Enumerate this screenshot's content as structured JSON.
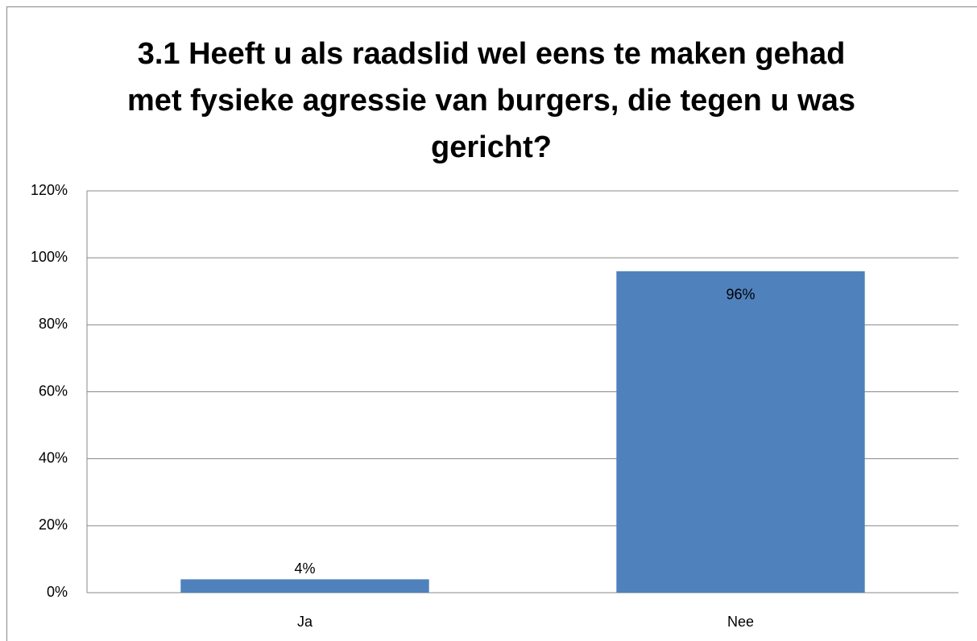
{
  "chart_data": {
    "type": "bar",
    "title": "3.1 Heeft u als raadslid wel eens te maken gehad met fysieke agressie van burgers, die tegen u was gericht?",
    "categories": [
      "Ja",
      "Nee"
    ],
    "values": [
      4,
      96
    ],
    "value_labels": [
      "4%",
      "96%"
    ],
    "color": "#4f81bd",
    "ylim": [
      0,
      120
    ],
    "yticks": [
      {
        "value": 0,
        "label": "0%"
      },
      {
        "value": 20,
        "label": "20%"
      },
      {
        "value": 40,
        "label": "40%"
      },
      {
        "value": 60,
        "label": "60%"
      },
      {
        "value": 80,
        "label": "80%"
      },
      {
        "value": 100,
        "label": "100%"
      },
      {
        "value": 120,
        "label": "120%"
      }
    ],
    "grid": true
  }
}
